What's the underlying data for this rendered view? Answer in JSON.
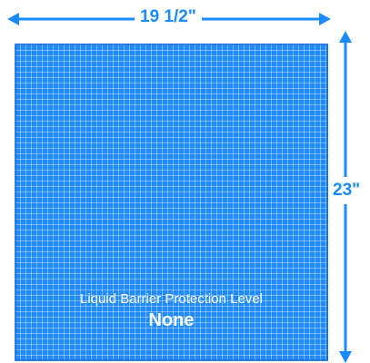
{
  "dimensions": {
    "width_label": "19 1/2\"",
    "height_label": "23\""
  },
  "pad": {
    "caption": "Liquid Barrier Protection Level",
    "level": "None",
    "color": "#1f8bff"
  },
  "colors": {
    "dimension_lines": "#1a8bff",
    "dimension_text": "#1a8bff"
  }
}
